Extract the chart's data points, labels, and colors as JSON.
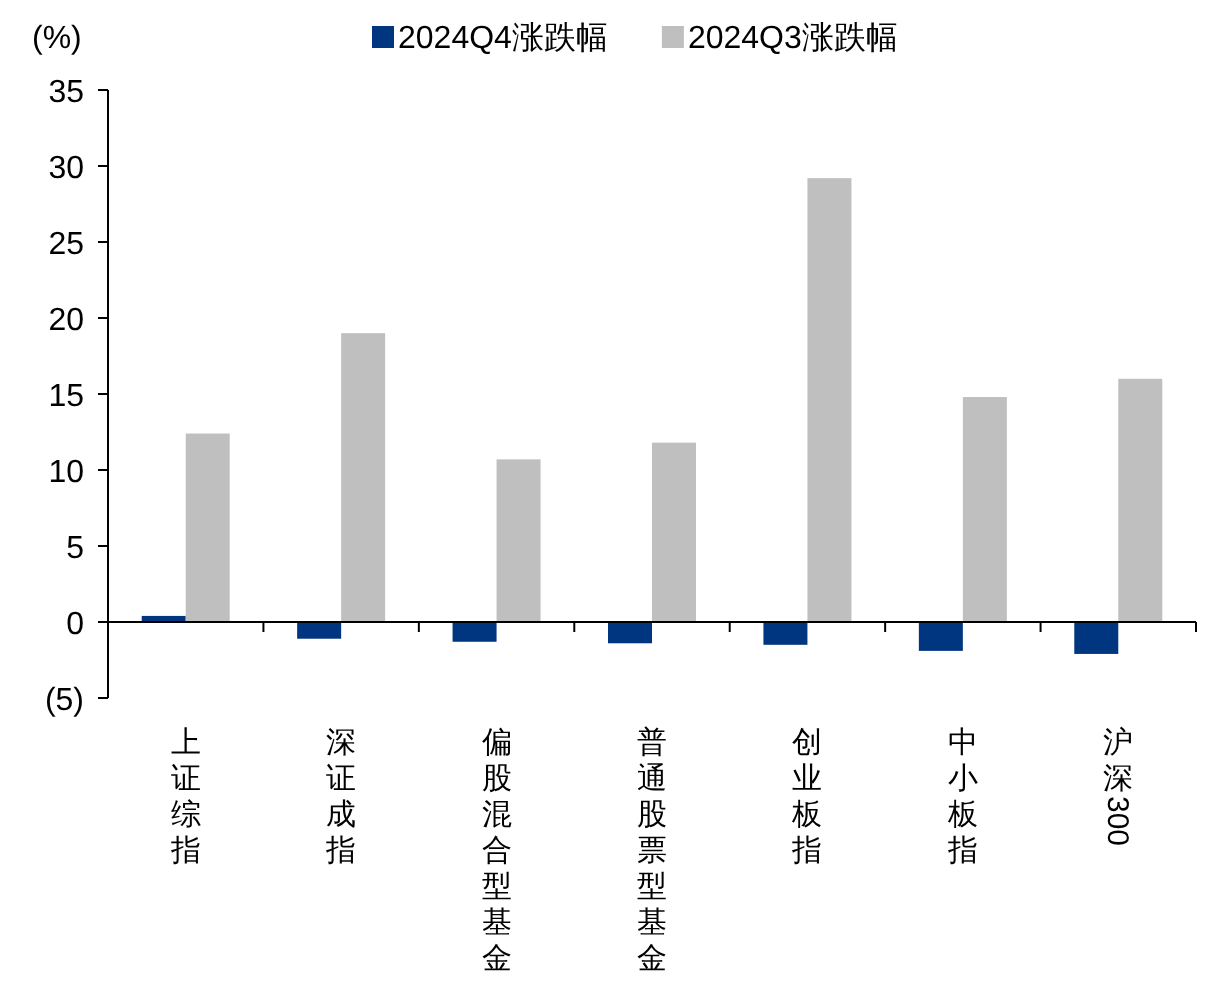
{
  "chart_data": {
    "type": "bar",
    "ylabel": "(%)",
    "categories": [
      "上证综指",
      "深证成指",
      "偏股混合型基金",
      "普通股票型基金",
      "创业板指",
      "中小板指",
      "沪深300"
    ],
    "series": [
      {
        "name": "2024Q4涨跌幅",
        "color": "#003580",
        "values": [
          0.4,
          -1.1,
          -1.3,
          -1.4,
          -1.5,
          -1.9,
          -2.1
        ]
      },
      {
        "name": "2024Q3涨跌幅",
        "color": "#bfbfbf",
        "values": [
          12.4,
          19.0,
          10.7,
          11.8,
          29.2,
          14.8,
          16.0
        ]
      }
    ],
    "ylim": [
      -5,
      35
    ],
    "yticks": [
      {
        "value": -5,
        "label": "(5)"
      },
      0,
      5,
      10,
      15,
      20,
      25,
      30,
      35
    ],
    "legend": "top"
  }
}
